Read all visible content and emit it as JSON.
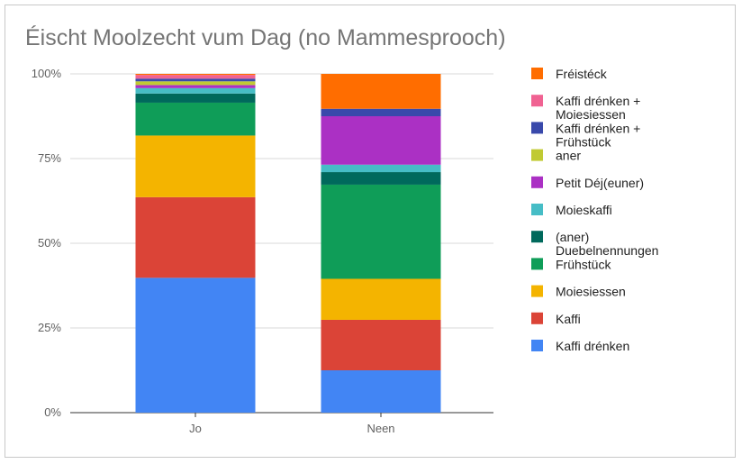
{
  "chart_data": {
    "type": "bar",
    "stacked": true,
    "percent": true,
    "title": "Éischt Moolzecht vum Dag (no Mammesprooch)",
    "xlabel": "",
    "ylabel": "",
    "ylim": [
      0,
      100
    ],
    "yticks": [
      "0%",
      "25%",
      "50%",
      "75%",
      "100%"
    ],
    "grid": true,
    "legend_position": "right",
    "categories": [
      "Jo",
      "Neen"
    ],
    "series": [
      {
        "name": "Kaffi drénken",
        "color": "#4285F4",
        "values": [
          39.8,
          12.5
        ]
      },
      {
        "name": "Kaffi",
        "color": "#DB4437",
        "values": [
          23.8,
          14.9
        ]
      },
      {
        "name": "Moiesiessen",
        "color": "#F4B400",
        "values": [
          18.2,
          12.1
        ]
      },
      {
        "name": "Frühstück",
        "color": "#0F9D58",
        "values": [
          9.7,
          27.8
        ]
      },
      {
        "name": "(aner) Duebelnennungen",
        "color": "#00695C",
        "values": [
          2.7,
          3.7
        ]
      },
      {
        "name": "Moieskaffi",
        "color": "#46BDC6",
        "values": [
          1.6,
          2.2
        ]
      },
      {
        "name": "Petit Déj(euner)",
        "color": "#AB30C4",
        "values": [
          0.9,
          14.3
        ]
      },
      {
        "name": "aner",
        "color": "#C0CA33",
        "values": [
          1.1,
          0
        ]
      },
      {
        "name": "Kaffi drénken + Frühstück",
        "color": "#3949AB",
        "values": [
          0.8,
          2.2
        ]
      },
      {
        "name": "Kaffi drénken + Moiesiessen",
        "color": "#F06292",
        "values": [
          1.1,
          0
        ]
      },
      {
        "name": "Fréistéck",
        "color": "#FF6D00",
        "values": [
          0.3,
          10.3
        ]
      }
    ]
  }
}
